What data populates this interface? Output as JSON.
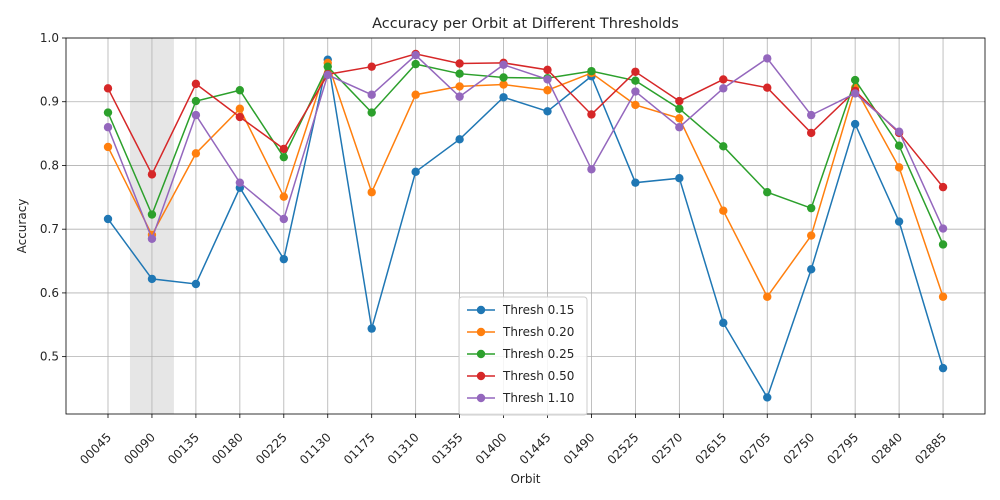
{
  "chart_data": {
    "type": "line",
    "title": "Accuracy per Orbit at Different Thresholds",
    "xlabel": "Orbit",
    "ylabel": "Accuracy",
    "ylim": [
      0.41,
      1.0
    ],
    "yticks": [
      "0.5",
      "0.6",
      "0.7",
      "0.8",
      "0.9",
      "1.0"
    ],
    "grid": true,
    "legend_position": "bottom-center",
    "highlight_category": "00090",
    "highlight_color": "#e6e6e6",
    "categories": [
      "00045",
      "00090",
      "00135",
      "00180",
      "00225",
      "01130",
      "01175",
      "01310",
      "01355",
      "01400",
      "01445",
      "01490",
      "02525",
      "02570",
      "02615",
      "02705",
      "02750",
      "02795",
      "02840",
      "02885"
    ],
    "series": [
      {
        "name": "Thresh 0.15",
        "color": "#1f77b4",
        "values": [
          0.716,
          0.622,
          0.614,
          0.765,
          0.653,
          0.966,
          0.544,
          0.79,
          0.841,
          0.907,
          0.885,
          0.94,
          0.773,
          0.78,
          0.553,
          0.436,
          0.637,
          0.865,
          0.712,
          0.482
        ]
      },
      {
        "name": "Thresh 0.20",
        "color": "#ff7f0e",
        "values": [
          0.829,
          0.691,
          0.819,
          0.889,
          0.751,
          0.961,
          0.758,
          0.911,
          0.924,
          0.927,
          0.918,
          0.945,
          0.895,
          0.874,
          0.729,
          0.594,
          0.69,
          0.922,
          0.797,
          0.594
        ]
      },
      {
        "name": "Thresh 0.25",
        "color": "#2ca02c",
        "values": [
          0.883,
          0.723,
          0.901,
          0.918,
          0.813,
          0.955,
          0.883,
          0.959,
          0.944,
          0.938,
          0.937,
          0.948,
          0.933,
          0.889,
          0.83,
          0.758,
          0.733,
          0.934,
          0.831,
          0.676
        ]
      },
      {
        "name": "Thresh 0.50",
        "color": "#d62728",
        "values": [
          0.921,
          0.786,
          0.928,
          0.876,
          0.826,
          0.943,
          0.955,
          0.975,
          0.96,
          0.961,
          0.95,
          0.88,
          0.947,
          0.901,
          0.935,
          0.922,
          0.851,
          0.917,
          0.851,
          0.766
        ]
      },
      {
        "name": "Thresh 1.10",
        "color": "#9467bd",
        "values": [
          0.86,
          0.685,
          0.879,
          0.773,
          0.716,
          0.942,
          0.911,
          0.973,
          0.908,
          0.958,
          0.935,
          0.794,
          0.916,
          0.86,
          0.921,
          0.968,
          0.879,
          0.913,
          0.853,
          0.701
        ]
      }
    ]
  }
}
